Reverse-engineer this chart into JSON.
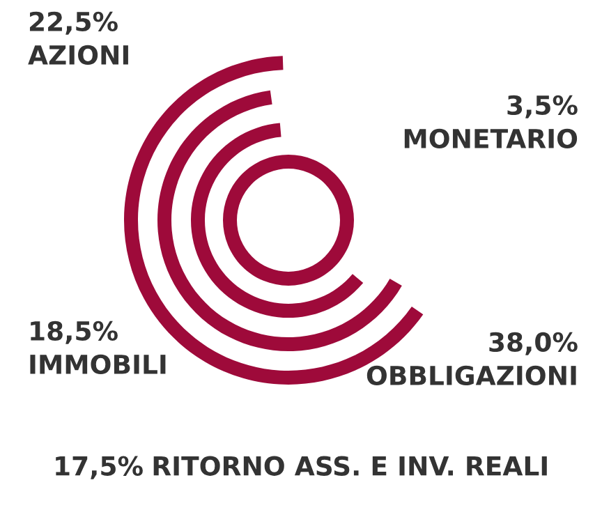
{
  "chart_data": {
    "type": "other",
    "categories": [
      "AZIONI",
      "MONETARIO",
      "IMMOBILI",
      "OBBLIGAZIONI",
      "RITORNO ASS. E INV. REALI"
    ],
    "values": [
      22.5,
      3.5,
      18.5,
      38.0,
      17.5
    ],
    "value_labels": [
      "22,5%",
      "3,5%",
      "18,5%",
      "38,0%",
      "17,5%"
    ],
    "color": "#9e0a3a"
  }
}
